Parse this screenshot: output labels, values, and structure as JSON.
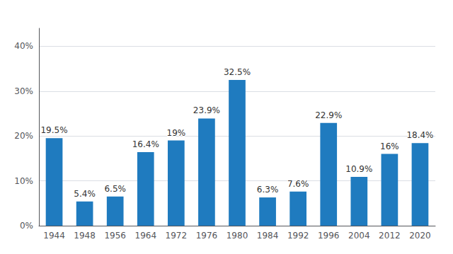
{
  "chart_data": {
    "type": "bar",
    "categories": [
      "1944",
      "1948",
      "1956",
      "1964",
      "1972",
      "1976",
      "1980",
      "1984",
      "1992",
      "1996",
      "2004",
      "2012",
      "2020"
    ],
    "values": [
      19.5,
      5.4,
      6.5,
      16.4,
      19.0,
      23.9,
      32.5,
      6.3,
      7.6,
      22.9,
      10.9,
      16.0,
      18.4
    ],
    "value_labels": [
      "19.5%",
      "5.4%",
      "6.5%",
      "16.4%",
      "19%",
      "23.9%",
      "32.5%",
      "6.3%",
      "7.6%",
      "22.9%",
      "10.9%",
      "16%",
      "18.4%"
    ],
    "data_labels": true,
    "color": "#1f7bbf",
    "ylim": [
      0,
      44
    ],
    "yticks": [
      {
        "value": 0,
        "label": "0%"
      },
      {
        "value": 10,
        "label": "10%"
      },
      {
        "value": 20,
        "label": "20%"
      },
      {
        "value": 30,
        "label": "30%"
      },
      {
        "value": 40,
        "label": "40%"
      }
    ],
    "grid": true
  }
}
